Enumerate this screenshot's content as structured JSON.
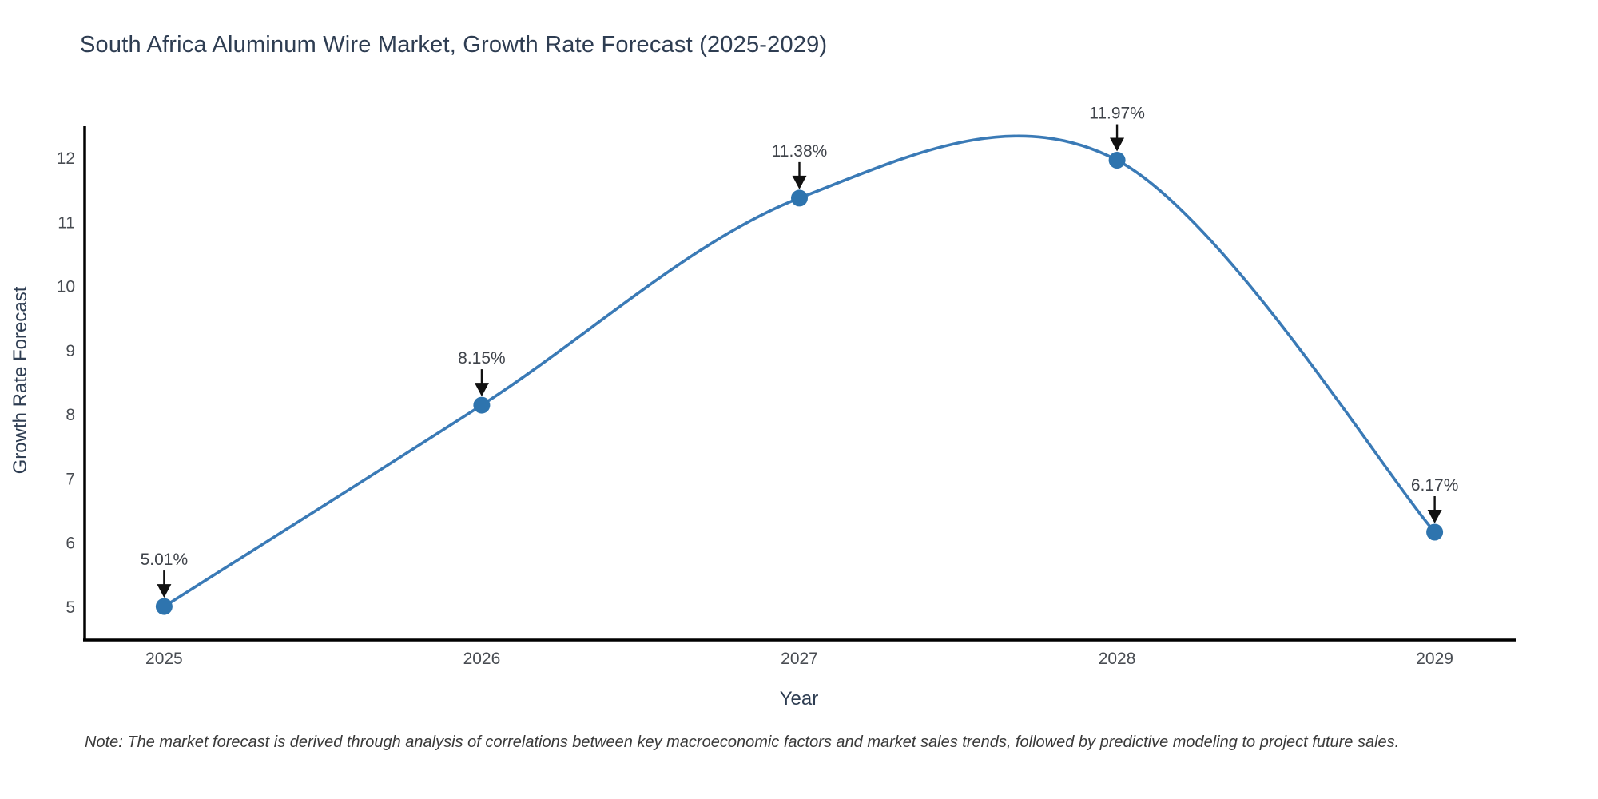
{
  "header": {
    "title": "South Africa Aluminum Wire Market, Growth Rate Forecast (2025-2029)"
  },
  "footnote": {
    "text": "Note: The market forecast is derived through analysis of correlations between key macroeconomic factors and market sales trends, followed by predictive modeling to project future sales."
  },
  "chart_data": {
    "type": "line",
    "title": "South Africa Aluminum Wire Market, Growth Rate Forecast (2025-2029)",
    "xlabel": "Year",
    "ylabel": "Growth Rate Forecast",
    "x": [
      2025,
      2026,
      2027,
      2028,
      2029
    ],
    "values": [
      5.01,
      8.15,
      11.38,
      11.97,
      6.17
    ],
    "point_labels": [
      "5.01%",
      "8.15%",
      "11.38%",
      "11.97%",
      "6.17%"
    ],
    "xticks": [
      "2025",
      "2026",
      "2027",
      "2028",
      "2029"
    ],
    "yticks": [
      "5",
      "6",
      "7",
      "8",
      "9",
      "10",
      "11",
      "12"
    ],
    "ytick_values": [
      5,
      6,
      7,
      8,
      9,
      10,
      11,
      12
    ],
    "xlim": [
      2024.75,
      2029.25
    ],
    "ylim": [
      4.5,
      12.5
    ],
    "grid": false,
    "legend_position": "none",
    "line_style": "smooth-spline",
    "marker": "circle",
    "colors": {
      "line": "#3a7ab6",
      "marker": "#2e74ae",
      "axis": "#000000",
      "tick_label": "#484c52",
      "annotation_text": "#3f434a",
      "annotation_arrow": "#111111",
      "title": "#2e3d52",
      "background": "#ffffff"
    }
  }
}
